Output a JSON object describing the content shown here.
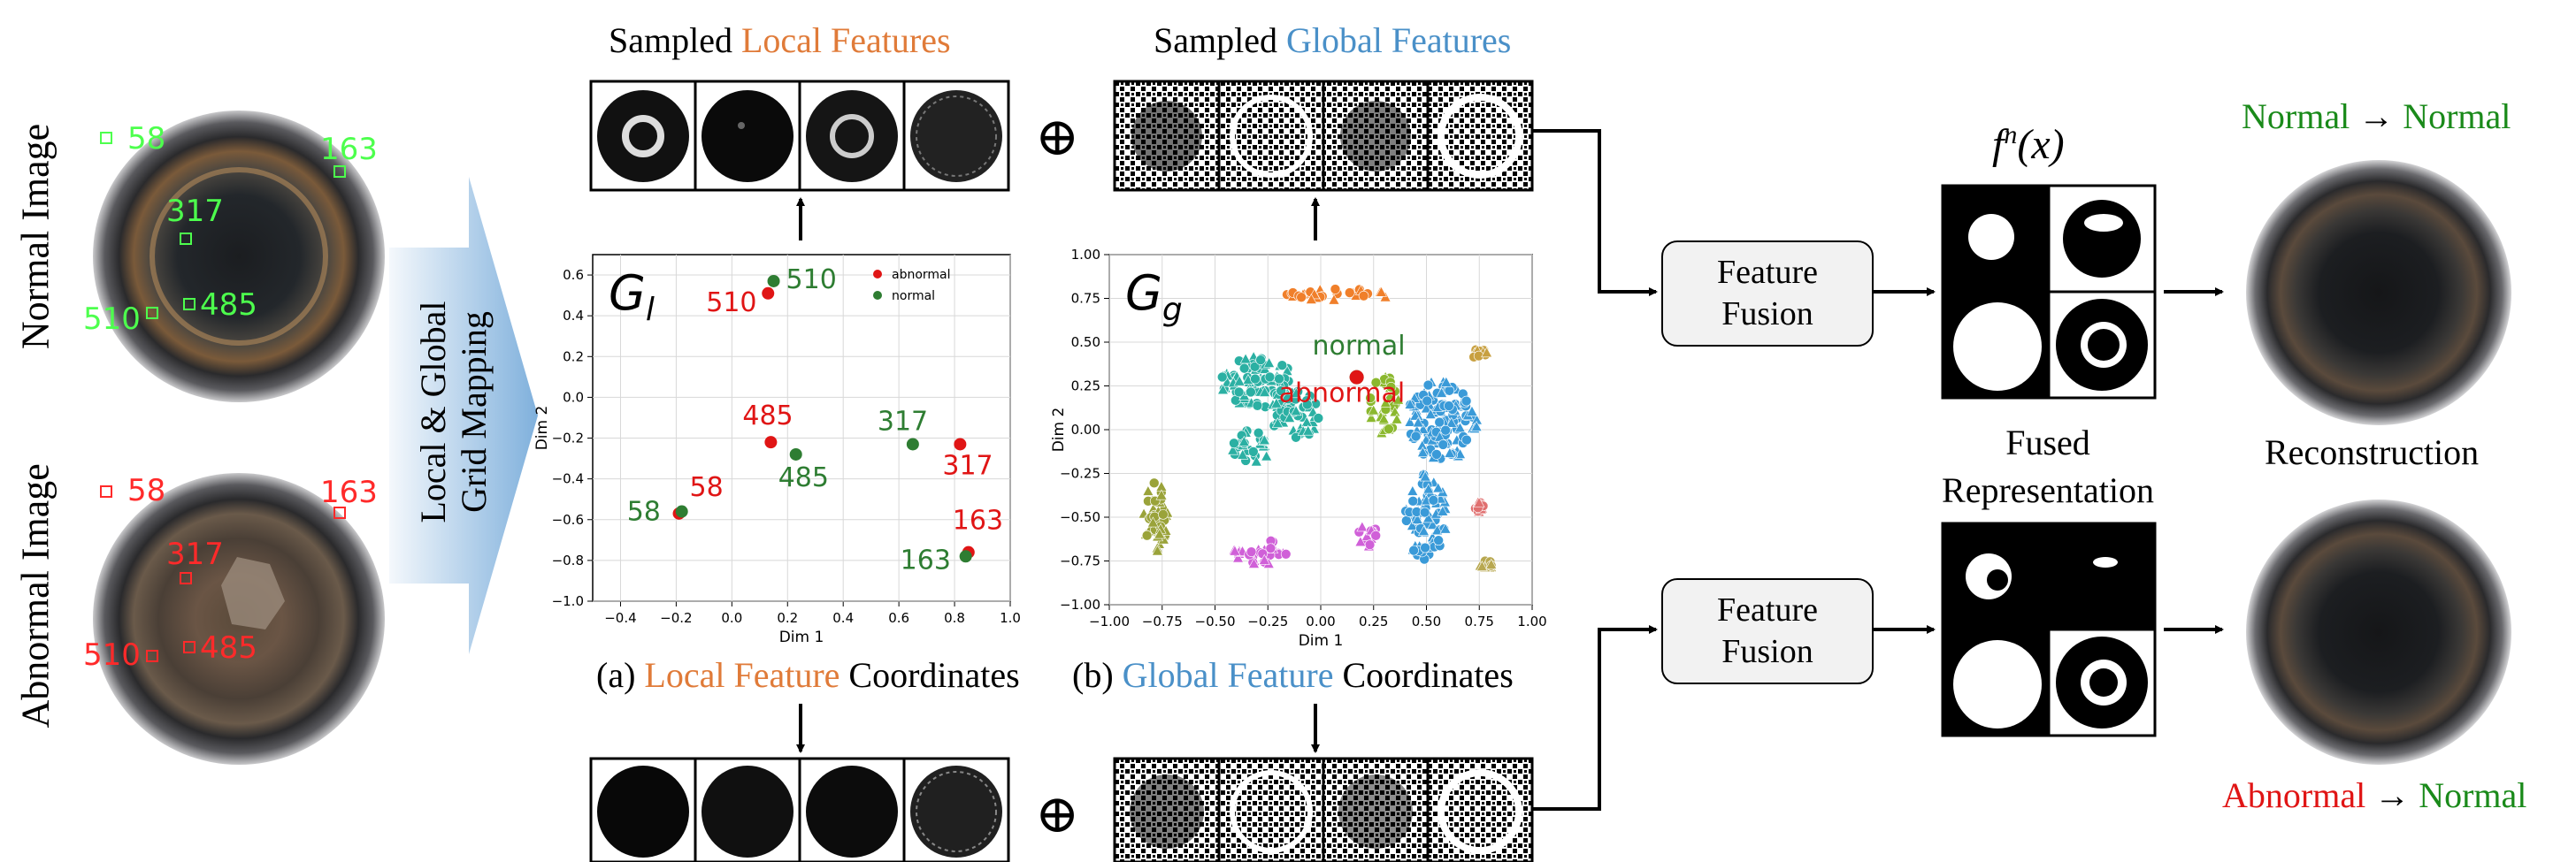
{
  "input_images": {
    "normal_label": "Normal Image",
    "abnormal_label": "Abnormal Image",
    "normal_markers": [
      "58",
      "163",
      "317",
      "510",
      "485"
    ],
    "abnormal_markers": [
      "58",
      "163",
      "317",
      "510",
      "485"
    ]
  },
  "mapping_label": {
    "line1": "Local & Global",
    "line2": "Grid Mapping"
  },
  "local_heading": {
    "prefix": "Sampled ",
    "colored": "Local Features"
  },
  "global_heading": {
    "prefix": "Sampled ",
    "colored": "Global Features"
  },
  "oplus": "⊕",
  "captions": {
    "a_prefix": "(a) ",
    "a_colored": "Local Feature",
    "a_suffix": " Coordinates",
    "b_prefix": "(b) ",
    "b_colored": "Global Feature",
    "b_suffix": " Coordinates"
  },
  "fusion": {
    "label_line1": "Feature",
    "label_line2": "Fusion"
  },
  "fn_label": "f",
  "fn_sup": "n",
  "fn_arg": "(x)",
  "fused_repr": {
    "line1": "Fused",
    "line2": "Representation"
  },
  "outputs": {
    "top_from": "Normal",
    "top_arrow": "→",
    "top_to": "Normal",
    "reconstruction": "Reconstruction",
    "bottom_from": "Abnormal",
    "bottom_arrow": "→",
    "bottom_to": "Normal"
  },
  "colors": {
    "orange": "#e07b39",
    "blue": "#4a90c8",
    "normal_green": "#1a8a1a",
    "abnormal_red": "#e01515"
  },
  "chart_data": [
    {
      "type": "scatter",
      "title": "G_l",
      "title_main": "G",
      "title_sub": "l",
      "xlabel": "Dim 1",
      "ylabel": "Dim 2",
      "xlim": [
        -0.5,
        1.0
      ],
      "ylim": [
        -1.0,
        0.7
      ],
      "xticks": [
        -0.4,
        -0.2,
        0.0,
        0.2,
        0.4,
        0.6,
        0.8,
        1.0
      ],
      "xtick_labels": [
        "−0.4",
        "−0.2",
        "0.0",
        "0.2",
        "0.4",
        "0.6",
        "0.8",
        "1.0"
      ],
      "yticks": [
        0.6,
        0.4,
        0.2,
        0.0,
        -0.2,
        -0.4,
        -0.6,
        -0.8,
        -1.0
      ],
      "ytick_labels": [
        "0.6",
        "0.4",
        "0.2",
        "0.0",
        "−0.2",
        "−0.4",
        "−0.6",
        "−0.8",
        "−1.0"
      ],
      "legend": {
        "position": "top-right",
        "entries": [
          "abnormal",
          "normal"
        ]
      },
      "series": [
        {
          "name": "abnormal",
          "color": "#e01515",
          "points": [
            {
              "x": 0.13,
              "y": 0.51,
              "label": "510"
            },
            {
              "x": 0.14,
              "y": -0.22,
              "label": "485"
            },
            {
              "x": 0.82,
              "y": -0.23,
              "label": "317"
            },
            {
              "x": 0.85,
              "y": -0.76,
              "label": "163"
            },
            {
              "x": -0.19,
              "y": -0.57,
              "label": "58"
            }
          ]
        },
        {
          "name": "normal",
          "color": "#2e7d32",
          "points": [
            {
              "x": 0.15,
              "y": 0.57,
              "label": "510"
            },
            {
              "x": 0.23,
              "y": -0.28,
              "label": "485"
            },
            {
              "x": 0.65,
              "y": -0.23,
              "label": "317"
            },
            {
              "x": 0.84,
              "y": -0.78,
              "label": "163"
            },
            {
              "x": -0.18,
              "y": -0.56,
              "label": "58"
            }
          ]
        }
      ]
    },
    {
      "type": "scatter",
      "title": "G_g",
      "title_main": "G",
      "title_sub": "g",
      "xlabel": "Dim 1",
      "ylabel": "Dim 2",
      "xlim": [
        -1.0,
        1.0
      ],
      "ylim": [
        -1.0,
        1.0
      ],
      "xticks": [
        -1.0,
        -0.75,
        -0.5,
        -0.25,
        0.0,
        0.25,
        0.5,
        0.75,
        1.0
      ],
      "xtick_labels": [
        "−1.00",
        "−0.75",
        "−0.50",
        "−0.25",
        "0.00",
        "0.25",
        "0.50",
        "0.75",
        "1.00"
      ],
      "yticks": [
        1.0,
        0.75,
        0.5,
        0.25,
        0.0,
        -0.25,
        -0.5,
        -0.75,
        -1.0
      ],
      "ytick_labels": [
        "1.00",
        "0.75",
        "0.50",
        "0.25",
        "0.00",
        "−0.25",
        "−0.50",
        "−0.75",
        "−1.00"
      ],
      "annotations": [
        {
          "text": "normal",
          "x": 0.18,
          "y": 0.43,
          "color": "#2e7d32"
        },
        {
          "text": "abnormal",
          "x": 0.1,
          "y": 0.16,
          "color": "#e01515"
        }
      ],
      "clusters": [
        {
          "color": "#f07f2a",
          "cx": 0.05,
          "cy": 0.77,
          "rx": 0.28,
          "ry": 0.035
        },
        {
          "color": "#2bb0a3",
          "cx": -0.3,
          "cy": 0.27,
          "rx": 0.17,
          "ry": 0.15
        },
        {
          "color": "#2bb0a3",
          "cx": -0.12,
          "cy": 0.1,
          "rx": 0.12,
          "ry": 0.15
        },
        {
          "color": "#2bb0a3",
          "cx": -0.32,
          "cy": -0.1,
          "rx": 0.1,
          "ry": 0.1
        },
        {
          "color": "#3a9ad8",
          "cx": 0.57,
          "cy": 0.05,
          "rx": 0.17,
          "ry": 0.23
        },
        {
          "color": "#3a9ad8",
          "cx": 0.5,
          "cy": -0.5,
          "rx": 0.1,
          "ry": 0.25
        },
        {
          "color": "#8bb82e",
          "cx": 0.3,
          "cy": 0.14,
          "rx": 0.07,
          "ry": 0.17
        },
        {
          "color": "#9aa33a",
          "cx": -0.78,
          "cy": -0.5,
          "rx": 0.06,
          "ry": 0.22
        },
        {
          "color": "#d060d8",
          "cx": -0.28,
          "cy": -0.7,
          "rx": 0.15,
          "ry": 0.07
        },
        {
          "color": "#d060d8",
          "cx": 0.22,
          "cy": -0.6,
          "rx": 0.05,
          "ry": 0.07
        },
        {
          "color": "#e07070",
          "cx": 0.75,
          "cy": -0.44,
          "rx": 0.02,
          "ry": 0.03
        },
        {
          "color": "#c8a040",
          "cx": 0.75,
          "cy": 0.43,
          "rx": 0.04,
          "ry": 0.03
        },
        {
          "color": "#b8a850",
          "cx": 0.77,
          "cy": -0.77,
          "rx": 0.04,
          "ry": 0.04
        }
      ],
      "highlight_points": [
        {
          "label": "normal",
          "x": 0.17,
          "y": 0.3,
          "color": "#2e7d32"
        },
        {
          "label": "abnormal",
          "x": 0.17,
          "y": 0.3,
          "color": "#e01515"
        }
      ]
    }
  ]
}
